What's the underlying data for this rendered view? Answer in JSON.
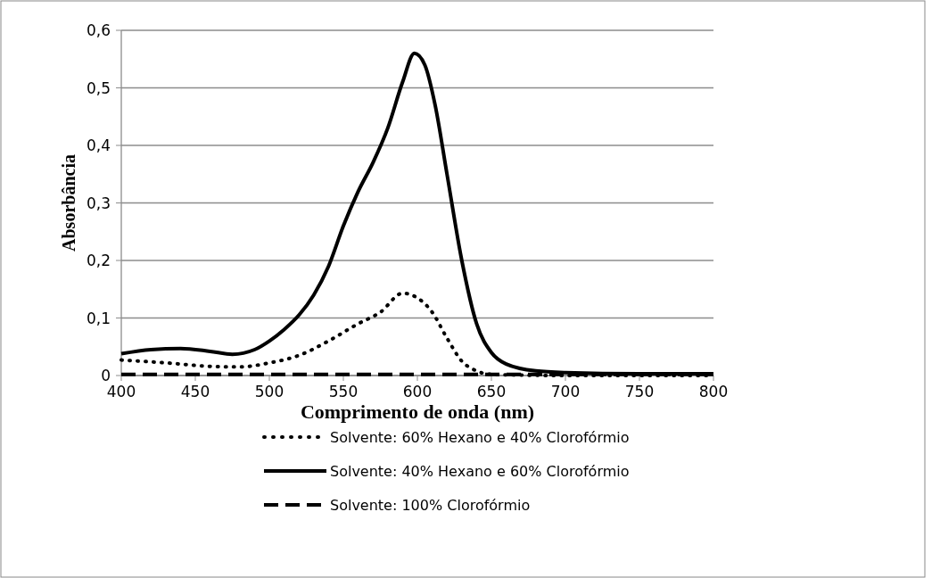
{
  "chart_data": {
    "type": "line",
    "xlabel": "Comprimento de onda (nm)",
    "ylabel": "Absorbância",
    "xlim": [
      400,
      800
    ],
    "xticks": [
      400,
      450,
      500,
      550,
      600,
      650,
      700,
      750,
      800
    ],
    "ylim": [
      0,
      0.6
    ],
    "yticks": [
      {
        "value": 0,
        "label": "0"
      },
      {
        "value": 0.1,
        "label": "0,1"
      },
      {
        "value": 0.2,
        "label": "0,2"
      },
      {
        "value": 0.3,
        "label": "0,3"
      },
      {
        "value": 0.4,
        "label": "0,4"
      },
      {
        "value": 0.5,
        "label": "0,5"
      },
      {
        "value": 0.6,
        "label": "0,6"
      }
    ],
    "grid": "y",
    "legend": "bottom",
    "series": [
      {
        "name": "Solvente: 60% Hexano e 40% Clorofórmio",
        "color": "#000000",
        "line_style": "dotted",
        "x": [
          400,
          430,
          460,
          480,
          500,
          520,
          540,
          560,
          575,
          590,
          600,
          610,
          620,
          630,
          640,
          650,
          700,
          750,
          800
        ],
        "values": [
          0.027,
          0.022,
          0.016,
          0.015,
          0.022,
          0.035,
          0.06,
          0.09,
          0.11,
          0.143,
          0.135,
          0.11,
          0.065,
          0.025,
          0.008,
          0.002,
          0,
          0,
          0
        ]
      },
      {
        "name": "Solvente: 40% Hexano e 60% Clorofórmio",
        "color": "#000000",
        "line_style": "solid",
        "x": [
          400,
          420,
          440,
          460,
          475,
          490,
          500,
          510,
          520,
          530,
          540,
          550,
          560,
          570,
          580,
          590,
          598,
          605,
          612,
          620,
          630,
          640,
          650,
          660,
          680,
          700,
          750,
          800
        ],
        "values": [
          0.038,
          0.045,
          0.047,
          0.042,
          0.037,
          0.045,
          0.06,
          0.08,
          0.105,
          0.14,
          0.19,
          0.26,
          0.32,
          0.37,
          0.43,
          0.51,
          0.56,
          0.54,
          0.47,
          0.35,
          0.2,
          0.09,
          0.04,
          0.02,
          0.008,
          0.005,
          0.003,
          0.003
        ]
      },
      {
        "name": "Solvente: 100% Clorofórmio",
        "color": "#000000",
        "line_style": "dashed",
        "x": [
          400,
          500,
          600,
          700,
          800
        ],
        "values": [
          0.002,
          0.002,
          0.002,
          0.002,
          0.002
        ]
      }
    ]
  }
}
